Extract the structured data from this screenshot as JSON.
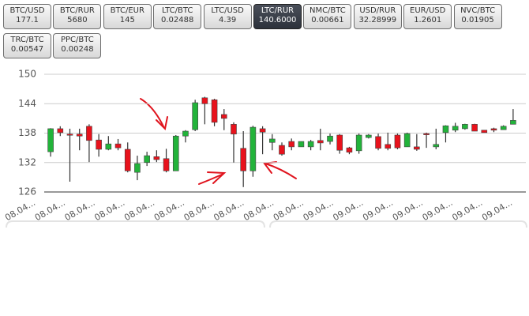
{
  "tickers": [
    {
      "pair": "BTC/USD",
      "price": "177.1"
    },
    {
      "pair": "BTC/RUR",
      "price": "5680"
    },
    {
      "pair": "BTC/EUR",
      "price": "145"
    },
    {
      "pair": "LTC/BTC",
      "price": "0.02488"
    },
    {
      "pair": "LTC/USD",
      "price": "4.39"
    },
    {
      "pair": "LTC/RUR",
      "price": "140.6000",
      "active": true
    },
    {
      "pair": "NMC/BTC",
      "price": "0.00661"
    },
    {
      "pair": "USD/RUR",
      "price": "32.28999"
    },
    {
      "pair": "EUR/USD",
      "price": "1.2601"
    },
    {
      "pair": "NVC/BTC",
      "price": "0.01905"
    },
    {
      "pair": "TRC/BTC",
      "price": "0.00547"
    },
    {
      "pair": "PPC/BTC",
      "price": "0.00248"
    }
  ],
  "chart_data": {
    "type": "candlestick",
    "up_color": "#22b33a",
    "down_color": "#e8121c",
    "ylim": [
      126,
      150
    ],
    "yticks": [
      126,
      132,
      138,
      144,
      150
    ],
    "grid": true,
    "xtick_labels": [
      "08.04...",
      "08.04...",
      "08.04...",
      "08.04...",
      "08.04...",
      "08.04...",
      "08.04...",
      "08.04...",
      "08.04...",
      "08.04...",
      "09.04...",
      "09.04...",
      "09.04...",
      "09.04...",
      "09.04...",
      "09.04...",
      "09.04..."
    ],
    "open": [
      134.2,
      138.9,
      137.8,
      137.8,
      139.4,
      136.6,
      134.7,
      135.8,
      134.7,
      130.0,
      132.0,
      133.2,
      132.8,
      130.3,
      137.4,
      138.7,
      145.2,
      144.8,
      141.8,
      139.8,
      134.9,
      130.3,
      138.9,
      136.1,
      135.5,
      136.3,
      135.2,
      135.2,
      136.5,
      136.3,
      137.6,
      135.0,
      134.4,
      137.1,
      137.3,
      135.7,
      137.6,
      135.2,
      135.2,
      137.9,
      135.2,
      138.1,
      138.6,
      138.9,
      139.8,
      138.6,
      138.9,
      138.7,
      139.8
    ],
    "high": [
      139.0,
      139.4,
      138.9,
      138.9,
      139.8,
      137.8,
      137.4,
      136.8,
      136.1,
      133.4,
      134.2,
      134.5,
      134.8,
      137.6,
      138.6,
      144.8,
      145.4,
      145.0,
      142.9,
      140.2,
      138.4,
      139.5,
      139.4,
      137.8,
      136.1,
      136.9,
      136.3,
      136.6,
      138.9,
      137.9,
      137.8,
      135.2,
      137.9,
      137.8,
      137.9,
      138.1,
      137.9,
      138.1,
      137.8,
      138.1,
      138.9,
      139.6,
      140.1,
      139.9,
      139.9,
      138.6,
      139.1,
      139.6,
      142.9
    ],
    "low": [
      133.2,
      137.4,
      128.1,
      134.5,
      132.1,
      133.2,
      134.5,
      134.5,
      130.0,
      128.4,
      131.3,
      132.1,
      130.0,
      130.3,
      136.1,
      138.4,
      139.8,
      139.4,
      138.6,
      132.0,
      127.0,
      129.1,
      133.7,
      134.5,
      133.4,
      134.5,
      135.2,
      134.5,
      134.5,
      135.7,
      133.8,
      133.7,
      133.8,
      136.9,
      134.5,
      134.5,
      134.7,
      135.2,
      134.4,
      135.0,
      134.7,
      136.1,
      138.2,
      138.7,
      138.4,
      138.1,
      138.2,
      138.7,
      139.8
    ],
    "close": [
      138.9,
      138.1,
      137.6,
      137.4,
      136.5,
      134.7,
      135.8,
      135.0,
      130.3,
      131.8,
      133.4,
      132.6,
      130.3,
      137.4,
      138.4,
      144.2,
      144.0,
      140.2,
      141.0,
      137.8,
      130.3,
      139.2,
      138.2,
      136.8,
      133.7,
      135.2,
      136.3,
      136.3,
      136.0,
      137.4,
      134.5,
      134.1,
      137.6,
      137.6,
      134.9,
      134.9,
      135.0,
      137.9,
      134.7,
      137.8,
      135.7,
      139.5,
      139.4,
      139.8,
      138.4,
      138.1,
      138.6,
      139.4,
      140.6
    ]
  }
}
